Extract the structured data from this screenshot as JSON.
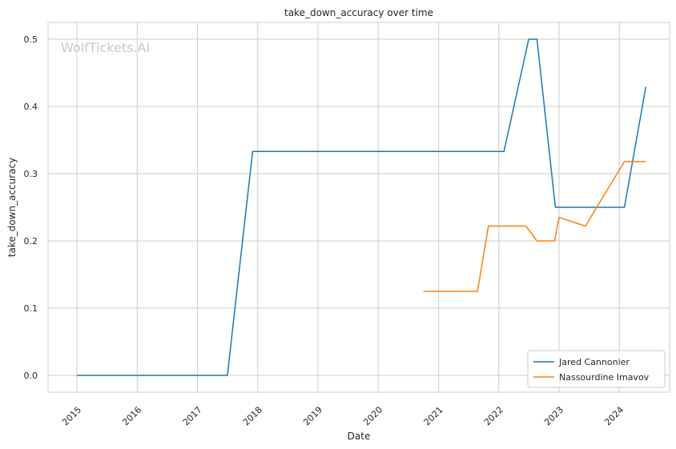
{
  "chart_data": {
    "type": "line",
    "title": "take_down_accuracy over time",
    "xlabel": "Date",
    "ylabel": "take_down_accuracy",
    "watermark": "WolfTickets.AI",
    "xlim": [
      "2014-07-10",
      "2024-11-01"
    ],
    "ylim": [
      -0.025,
      0.525
    ],
    "x_ticks": [
      "2015",
      "2016",
      "2017",
      "2018",
      "2019",
      "2020",
      "2021",
      "2022",
      "2023",
      "2024"
    ],
    "y_ticks": [
      "0.0",
      "0.1",
      "0.2",
      "0.3",
      "0.4",
      "0.5"
    ],
    "grid": true,
    "legend_position": "bottom-right",
    "series": [
      {
        "name": "Jared Cannonier",
        "color": "#1f77b4",
        "points": [
          [
            "2015-01-01",
            0.0
          ],
          [
            "2017-07-01",
            0.0
          ],
          [
            "2017-12-01",
            0.333
          ],
          [
            "2022-02-01",
            0.333
          ],
          [
            "2022-07-01",
            0.5
          ],
          [
            "2022-08-20",
            0.5
          ],
          [
            "2022-12-10",
            0.25
          ],
          [
            "2024-02-01",
            0.25
          ],
          [
            "2024-06-10",
            0.429
          ]
        ]
      },
      {
        "name": "Nassourdine Imavov",
        "color": "#ff7f0e",
        "points": [
          [
            "2020-10-01",
            0.125
          ],
          [
            "2021-08-25",
            0.125
          ],
          [
            "2021-10-30",
            0.222
          ],
          [
            "2022-06-15",
            0.222
          ],
          [
            "2022-08-20",
            0.2
          ],
          [
            "2022-12-05",
            0.2
          ],
          [
            "2023-01-01",
            0.235
          ],
          [
            "2023-06-10",
            0.222
          ],
          [
            "2024-02-01",
            0.318
          ],
          [
            "2024-06-10",
            0.318
          ]
        ]
      }
    ]
  }
}
